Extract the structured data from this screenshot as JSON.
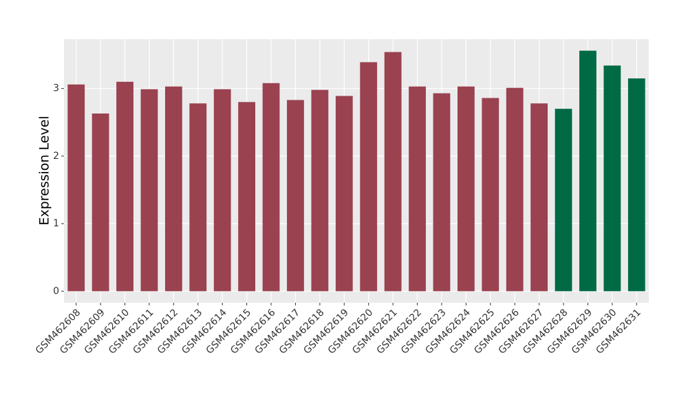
{
  "chart_data": {
    "type": "bar",
    "y_label": "Expression Level",
    "categories": [
      "GSM462608",
      "GSM462609",
      "GSM462610",
      "GSM462611",
      "GSM462612",
      "GSM462613",
      "GSM462614",
      "GSM462615",
      "GSM462616",
      "GSM462617",
      "GSM462618",
      "GSM462619",
      "GSM462620",
      "GSM462621",
      "GSM462622",
      "GSM462623",
      "GSM462624",
      "GSM462625",
      "GSM462626",
      "GSM462627",
      "GSM462628",
      "GSM462629",
      "GSM462630",
      "GSM462631"
    ],
    "values": [
      3.06,
      2.63,
      3.1,
      2.99,
      3.03,
      2.78,
      2.99,
      2.8,
      3.08,
      2.83,
      2.98,
      2.89,
      3.39,
      3.54,
      3.03,
      2.93,
      3.03,
      2.86,
      3.01,
      2.78,
      2.7,
      3.56,
      3.34,
      3.15
    ],
    "colors": [
      "#9a4250",
      "#9a4250",
      "#9a4250",
      "#9a4250",
      "#9a4250",
      "#9a4250",
      "#9a4250",
      "#9a4250",
      "#9a4250",
      "#9a4250",
      "#9a4250",
      "#9a4250",
      "#9a4250",
      "#9a4250",
      "#9a4250",
      "#9a4250",
      "#9a4250",
      "#9a4250",
      "#9a4250",
      "#9a4250",
      "#006a44",
      "#006a44",
      "#006a44",
      "#006a44"
    ],
    "ylim": [
      -0.17,
      3.73
    ],
    "yticks": [
      0,
      1,
      2,
      3
    ],
    "grid": true
  }
}
